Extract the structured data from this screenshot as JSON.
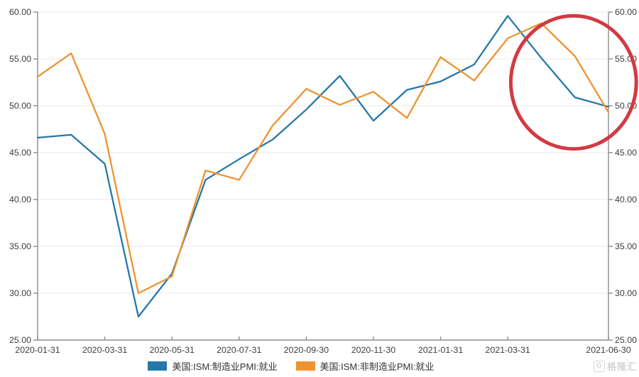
{
  "chart_data": {
    "type": "line",
    "title": "",
    "xlabel": "",
    "ylabel": "",
    "ylim": [
      25,
      60
    ],
    "grid": "horizontal",
    "legend_position": "bottom",
    "x": [
      "2020-01-31",
      "2020-02-29",
      "2020-03-31",
      "2020-04-30",
      "2020-05-31",
      "2020-06-30",
      "2020-07-31",
      "2020-08-31",
      "2020-09-30",
      "2020-10-31",
      "2020-11-30",
      "2020-12-31",
      "2021-01-31",
      "2021-02-28",
      "2021-03-31",
      "2021-04-30",
      "2021-05-31",
      "2021-06-30"
    ],
    "x_tick_indices": [
      0,
      2,
      4,
      6,
      8,
      10,
      12,
      14,
      17
    ],
    "x_tick_labels": [
      "2020-01-31",
      "2020-03-31",
      "2020-05-31",
      "2020-07-31",
      "2020-09-30",
      "2020-11-30",
      "2021-01-31",
      "2021-03-31",
      "2021-06-30"
    ],
    "y_ticks": [
      {
        "value": 60,
        "label": "60.00"
      },
      {
        "value": 55,
        "label": "55.00"
      },
      {
        "value": 50,
        "label": "50.00"
      },
      {
        "value": 45,
        "label": "45.00"
      },
      {
        "value": 40,
        "label": "40.00"
      },
      {
        "value": 35,
        "label": "35.00"
      },
      {
        "value": 30,
        "label": "30.00"
      },
      {
        "value": 25,
        "label": "25.00"
      }
    ],
    "series": [
      {
        "name": "美国:ISM:制造业PMI:就业",
        "color": "#2578a8",
        "values": [
          46.6,
          46.9,
          43.8,
          27.5,
          32.1,
          42.1,
          44.3,
          46.4,
          49.6,
          53.2,
          48.4,
          51.7,
          52.6,
          54.4,
          59.6,
          55.1,
          50.9,
          49.9
        ]
      },
      {
        "name": "美国:ISM:非制造业PMI:就业",
        "color": "#ee9331",
        "values": [
          53.1,
          55.6,
          47.0,
          30.0,
          31.8,
          43.1,
          42.1,
          47.9,
          51.8,
          50.1,
          51.5,
          48.7,
          55.2,
          52.7,
          57.2,
          58.8,
          55.3,
          49.3
        ]
      }
    ],
    "annotation": {
      "shape": "ellipse",
      "color": "#d23a42",
      "stroke_width": 5,
      "center_x_index": 15.96,
      "center_y_value": 52.5,
      "radius_x_months": 1.87,
      "radius_y_value": 7.1
    }
  },
  "axis_colors": {
    "axis_line": "#8c8c8c",
    "grid_line": "#ededed",
    "tick_label": "#3d3d3d"
  },
  "watermark": {
    "icon": "G",
    "text": "格隆汇"
  }
}
